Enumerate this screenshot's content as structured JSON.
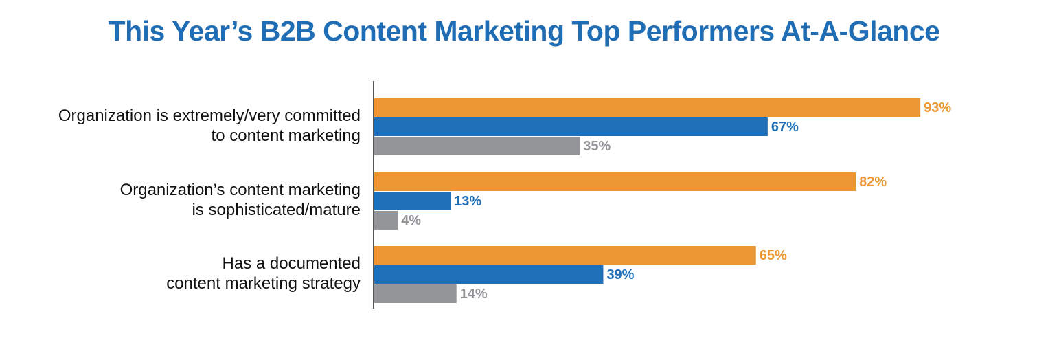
{
  "chart_data": {
    "type": "bar",
    "orientation": "horizontal",
    "title": "This Year’s B2B Content Marketing Top Performers At-A-Glance",
    "title_color": "#1f6db5",
    "categories": [
      [
        "Organization is extremely/very committed",
        "to content marketing"
      ],
      [
        "Organization’s content marketing",
        "is sophisticated/mature"
      ],
      [
        "Has a documented",
        "content marketing strategy"
      ]
    ],
    "series": [
      {
        "values": [
          93,
          82,
          65
        ],
        "color": "#ec9731",
        "labels": [
          "93%",
          "82%",
          "65%"
        ]
      },
      {
        "values": [
          67,
          13,
          39
        ],
        "color": "#1f70b8",
        "labels": [
          "67%",
          "13%",
          "39%"
        ]
      },
      {
        "values": [
          35,
          4,
          14
        ],
        "color": "#939598",
        "labels": [
          "35%",
          "4%",
          "14%"
        ]
      }
    ],
    "xlim": [
      0,
      100
    ],
    "grid": false,
    "legend": "none",
    "axis_color": "#231f20"
  }
}
